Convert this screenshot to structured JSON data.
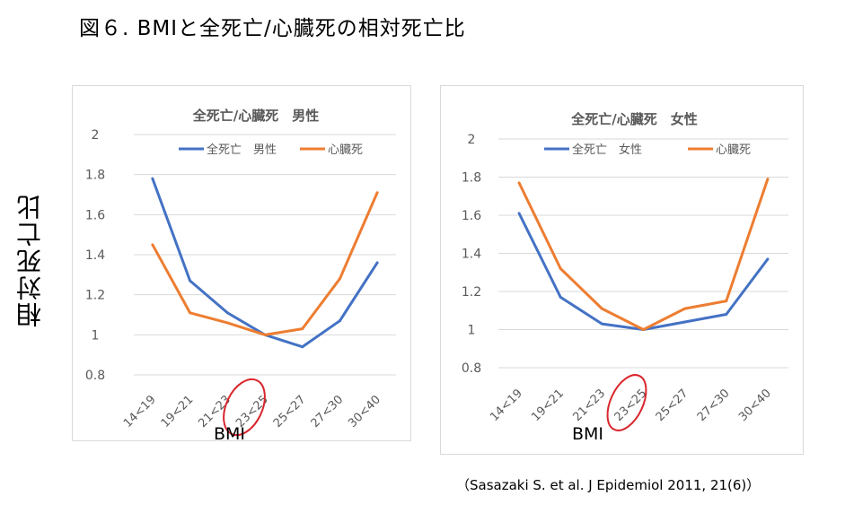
{
  "figure_title": "図６. BMIと全死亡/心臓死の相対死亡比",
  "y_axis_title": "相対死亡比",
  "citation": "（Sasazaki S. et al. J Epidemiol 2011, 21(6)）",
  "colors": {
    "all_cause": "#4472c4",
    "cardiac": "#ed7d31",
    "grid": "#d9d9d9",
    "highlight": "#d9262d",
    "tick_text": "#595959"
  },
  "chart_data": [
    {
      "type": "line",
      "title": "全死亡/心臓死　男性",
      "xlabel": "BMI",
      "ylabel": "",
      "categories": [
        "14<19",
        "19<21",
        "21<23",
        "23<25",
        "25<27",
        "27<30",
        "30<40"
      ],
      "y_ticks": [
        "2",
        "1.8",
        "1.6",
        "1.4",
        "1.2",
        "1",
        "0.8"
      ],
      "ylim": [
        0.8,
        2
      ],
      "grid": true,
      "legend_position": "top",
      "highlighted_category": "23<25",
      "series": [
        {
          "name": "全死亡　男性",
          "color": "#4472c4",
          "values": [
            1.78,
            1.27,
            1.11,
            1.0,
            0.94,
            1.07,
            1.36
          ]
        },
        {
          "name": "心臓死",
          "color": "#ed7d31",
          "values": [
            1.45,
            1.11,
            1.06,
            1.0,
            1.03,
            1.28,
            1.71
          ]
        }
      ]
    },
    {
      "type": "line",
      "title": "全死亡/心臓死　女性",
      "xlabel": "BMI",
      "ylabel": "",
      "categories": [
        "14<19",
        "19<21",
        "21<23",
        "23<25",
        "25<27",
        "27<30",
        "30<40"
      ],
      "y_ticks": [
        "2",
        "1.8",
        "1.6",
        "1.4",
        "1.2",
        "1",
        "0.8"
      ],
      "ylim": [
        0.8,
        2
      ],
      "grid": true,
      "legend_position": "top",
      "highlighted_category": "23<25",
      "series": [
        {
          "name": "全死亡　女性",
          "color": "#4472c4",
          "values": [
            1.61,
            1.17,
            1.03,
            1.0,
            1.04,
            1.08,
            1.37
          ]
        },
        {
          "name": "心臓死",
          "color": "#ed7d31",
          "values": [
            1.77,
            1.32,
            1.11,
            1.0,
            1.11,
            1.15,
            1.79
          ]
        }
      ]
    }
  ]
}
